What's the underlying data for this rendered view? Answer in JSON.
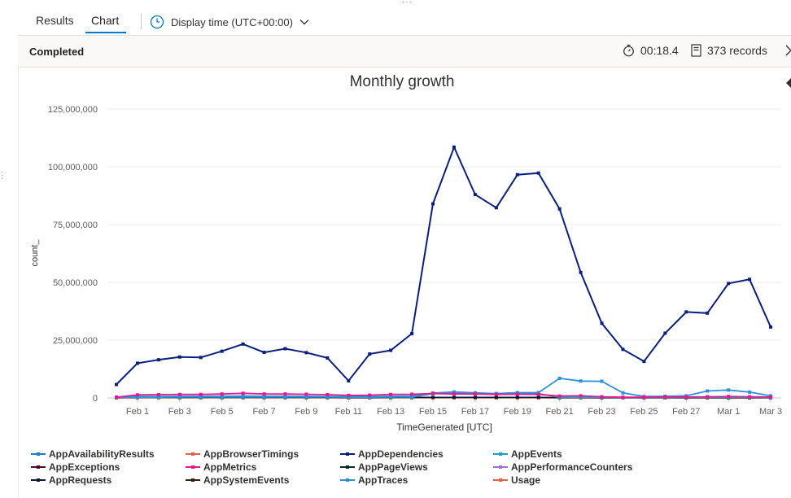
{
  "tabs": [
    {
      "label": "Results",
      "active": false
    },
    {
      "label": "Chart",
      "active": true
    }
  ],
  "display_time": {
    "label": "Display time (UTC+00:00)",
    "icon": "clock-icon"
  },
  "status": {
    "text": "Completed",
    "elapsed": "00:18.4",
    "records": "373 records"
  },
  "colors": {
    "accent": "#0078d4",
    "AppAvailabilityResults": "#1f7ed0",
    "AppBrowserTimings": "#e8614d",
    "AppDependencies": "#0b1f82",
    "AppEvents": "#19a2c6",
    "AppExceptions": "#4b0a35",
    "AppMetrics": "#e8178a",
    "AppPageViews": "#062a2e",
    "AppPerformanceCounters": "#9b73d6",
    "AppRequests": "#0e1a35",
    "AppSystemEvents": "#3a2008",
    "AppTraces": "#2c8fe0",
    "Usage": "#e8614d"
  },
  "chart_data": {
    "type": "line",
    "title": "Monthly growth",
    "xlabel": "TimeGenerated [UTC]",
    "ylabel": "count_",
    "ylim": [
      0,
      125000000
    ],
    "y_ticks": [
      "0",
      "25,000,000",
      "50,000,000",
      "75,000,000",
      "100,000,000",
      "125,000,000"
    ],
    "x_ticks": [
      "Feb 1",
      "Feb 3",
      "Feb 5",
      "Feb 7",
      "Feb 9",
      "Feb 11",
      "Feb 13",
      "Feb 15",
      "Feb 17",
      "Feb 19",
      "Feb 21",
      "Feb 23",
      "Feb 25",
      "Feb 27",
      "Mar 1",
      "Mar 3"
    ],
    "grid": true,
    "legend_position": "bottom",
    "x": [
      "Jan 31",
      "Feb 1",
      "Feb 2",
      "Feb 3",
      "Feb 4",
      "Feb 5",
      "Feb 6",
      "Feb 7",
      "Feb 8",
      "Feb 9",
      "Feb 10",
      "Feb 11",
      "Feb 12",
      "Feb 13",
      "Feb 14",
      "Feb 15",
      "Feb 16",
      "Feb 17",
      "Feb 18",
      "Feb 19",
      "Feb 20",
      "Feb 21",
      "Feb 22",
      "Feb 23",
      "Feb 24",
      "Feb 25",
      "Feb 26",
      "Feb 27",
      "Feb 28",
      "Mar 1",
      "Mar 2",
      "Mar 3"
    ],
    "series": [
      {
        "name": "AppDependencies",
        "values": [
          5800000,
          15000000,
          16500000,
          17700000,
          17500000,
          20200000,
          23300000,
          19700000,
          21300000,
          19600000,
          17300000,
          7400000,
          19000000,
          20600000,
          27800000,
          84000000,
          108500000,
          88000000,
          82300000,
          96600000,
          97300000,
          81800000,
          54300000,
          32300000,
          21000000,
          15800000,
          28000000,
          37200000,
          36700000,
          49500000,
          51300000,
          30700000
        ]
      },
      {
        "name": "AppMetrics",
        "values": [
          300000,
          1300000,
          1400000,
          1500000,
          1500000,
          1700000,
          2000000,
          1700000,
          1700000,
          1600000,
          1400000,
          1100000,
          1200000,
          1500000,
          1600000,
          1900000,
          1700000,
          1700000,
          1500000,
          1600000,
          1500000,
          800000,
          900000,
          500000,
          300000,
          300000,
          400000,
          400000,
          500000,
          600000,
          500000,
          400000
        ]
      },
      {
        "name": "AppTraces",
        "values": [
          300000,
          600000,
          600000,
          700000,
          700000,
          700000,
          800000,
          700000,
          700000,
          700000,
          600000,
          600000,
          600000,
          700000,
          800000,
          2100000,
          2600000,
          2200000,
          1900000,
          2300000,
          2300000,
          8500000,
          7300000,
          7200000,
          2200000,
          600000,
          700000,
          900000,
          3000000,
          3400000,
          2500000,
          900000
        ]
      },
      {
        "name": "AppEvents",
        "values": [
          200000,
          300000,
          300000,
          400000,
          400000,
          400000,
          400000,
          400000,
          400000,
          400000,
          400000,
          300000,
          300000,
          400000,
          400000,
          1800000,
          2100000,
          1800000,
          1700000,
          1900000,
          1800000,
          300000,
          300000,
          300000,
          200000,
          200000,
          200000,
          300000,
          300000,
          300000,
          300000,
          200000
        ]
      },
      {
        "name": "AppRequests",
        "values": [
          100000,
          200000,
          200000,
          200000,
          200000,
          200000,
          200000,
          200000,
          200000,
          200000,
          200000,
          150000,
          150000,
          200000,
          200000,
          200000,
          200000,
          200000,
          200000,
          200000,
          200000,
          150000,
          150000,
          100000,
          100000,
          100000,
          100000,
          100000,
          100000,
          100000,
          100000,
          100000
        ]
      },
      {
        "name": "AppBrowserTimings",
        "values": [
          50000,
          100000,
          100000,
          100000,
          100000,
          100000,
          100000,
          100000,
          100000,
          100000,
          100000,
          80000,
          80000,
          100000,
          100000,
          100000,
          100000,
          100000,
          100000,
          100000,
          100000,
          80000,
          80000,
          60000,
          60000,
          60000,
          60000,
          60000,
          60000,
          60000,
          60000,
          60000
        ]
      }
    ],
    "legend": [
      "AppAvailabilityResults",
      "AppBrowserTimings",
      "AppDependencies",
      "AppEvents",
      "AppExceptions",
      "AppMetrics",
      "AppPageViews",
      "AppPerformanceCounters",
      "AppRequests",
      "AppSystemEvents",
      "AppTraces",
      "Usage"
    ]
  }
}
